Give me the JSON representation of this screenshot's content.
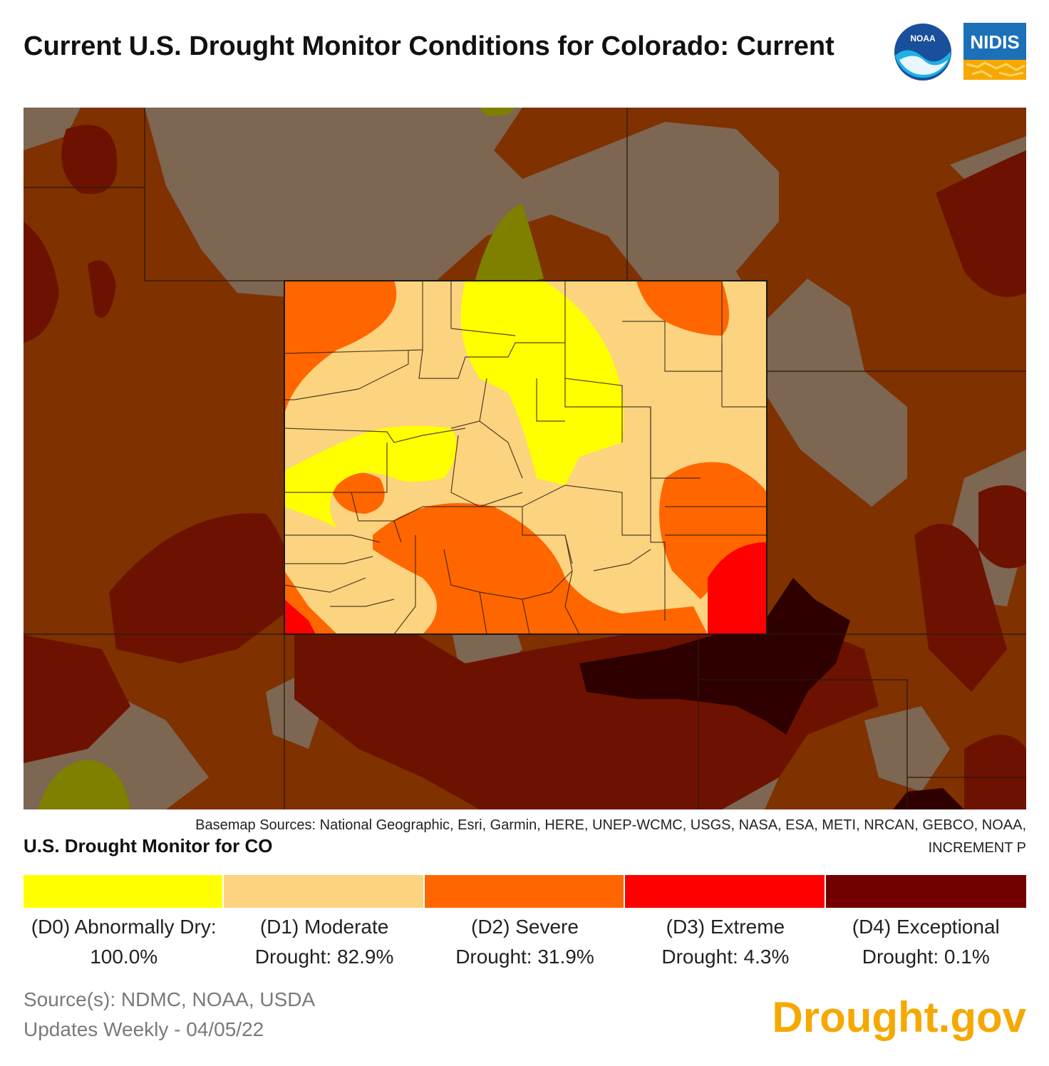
{
  "header": {
    "title": "Current U.S. Drought Monitor Conditions for Colorado: Current",
    "logos": {
      "noaa": "NOAA",
      "nidis": "NIDIS"
    }
  },
  "map": {
    "attribution": "Basemap Sources: National Geographic, Esri, Garmin, HERE, UNEP-WCMC, USGS, NASA, ESA, METI, NRCAN, GEBCO, NOAA, INCREMENT P",
    "colors": {
      "outside_none": "#7d6652",
      "outside_d1": "#7f3100",
      "outside_d2": "#6d1200",
      "outside_d4": "#2e0000",
      "outside_d0": "#7f7f00"
    }
  },
  "legend": {
    "title": "U.S. Drought Monitor for CO",
    "items": [
      {
        "label": "(D0) Abnormally Dry: 100.0%",
        "color": "#ffff00"
      },
      {
        "label": "(D1) Moderate Drought: 82.9%",
        "color": "#fcd37f"
      },
      {
        "label": "(D2) Severe Drought: 31.9%",
        "color": "#ff6600"
      },
      {
        "label": "(D3) Extreme Drought: 4.3%",
        "color": "#ff0000"
      },
      {
        "label": "(D4) Exceptional Drought: 0.1%",
        "color": "#730000"
      }
    ]
  },
  "footer": {
    "sources": "Source(s): NDMC, NOAA, USDA",
    "updated": "Updates Weekly - 04/05/22",
    "brand": "Drought.gov"
  }
}
